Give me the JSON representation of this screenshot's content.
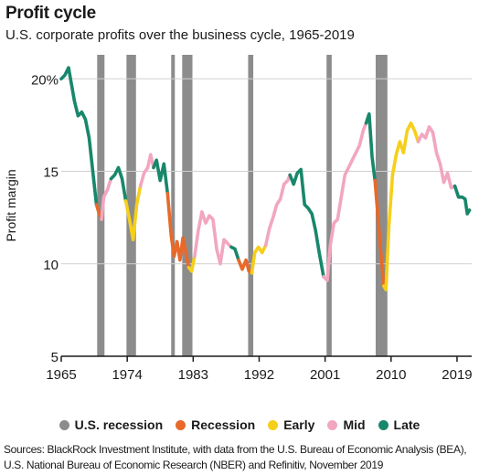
{
  "title": "Profit cycle",
  "subtitle": "U.S. corporate profits over the business cycle, 1965-2019",
  "sources": [
    "Sources: BlackRock Investment Institute, with data from the U.S. Bureau of Economic Analysis (BEA),",
    "U.S. National Bureau of Economic Research (NBER) and Refinitiv, November 2019"
  ],
  "legend": [
    {
      "label": "U.S. recession",
      "color": "#8c8c8c"
    },
    {
      "label": "Recession",
      "color": "#e8692a"
    },
    {
      "label": "Early",
      "color": "#f5cf1b"
    },
    {
      "label": "Mid",
      "color": "#f2a6bf"
    },
    {
      "label": "Late",
      "color": "#18876b"
    }
  ],
  "chart_data": {
    "type": "line",
    "title": "Profit cycle",
    "ylabel": "Profit margin",
    "xlabel": "",
    "xlim": [
      1965,
      2021
    ],
    "ylim": [
      5,
      21
    ],
    "x_ticks": [
      1965,
      1974,
      1983,
      1992,
      2001,
      2010,
      2019
    ],
    "x_tick_labels": [
      "1965",
      "1974",
      "1983",
      "1992",
      "2001",
      "2010",
      "2019"
    ],
    "y_ticks": [
      5,
      10,
      15,
      20
    ],
    "y_tick_labels": [
      "5",
      "10",
      "15",
      "20%"
    ],
    "grid": "horizontal",
    "legend_position": "bottom",
    "recessions": [
      [
        1969.9,
        1970.9
      ],
      [
        1973.9,
        1975.2
      ],
      [
        1980.0,
        1980.5
      ],
      [
        1981.5,
        1982.9
      ],
      [
        1990.5,
        1991.2
      ],
      [
        2001.2,
        2001.9
      ],
      [
        2007.9,
        2009.5
      ]
    ],
    "phase_colors": {
      "Recession": "#e8692a",
      "Early": "#f5cf1b",
      "Mid": "#f2a6bf",
      "Late": "#18876b"
    },
    "segments": [
      {
        "phase": "Late",
        "points": [
          [
            1965.0,
            20.0
          ],
          [
            1965.5,
            20.2
          ],
          [
            1966.0,
            20.6
          ],
          [
            1966.4,
            19.7
          ],
          [
            1966.8,
            18.8
          ],
          [
            1967.3,
            18.0
          ],
          [
            1967.8,
            18.2
          ],
          [
            1968.3,
            17.8
          ],
          [
            1968.8,
            16.8
          ],
          [
            1969.3,
            15.0
          ],
          [
            1969.8,
            13.2
          ]
        ]
      },
      {
        "phase": "Recession",
        "points": [
          [
            1969.8,
            13.2
          ],
          [
            1970.1,
            12.8
          ],
          [
            1970.5,
            12.4
          ]
        ]
      },
      {
        "phase": "Mid",
        "points": [
          [
            1970.5,
            12.4
          ],
          [
            1970.8,
            13.6
          ],
          [
            1971.3,
            14.0
          ],
          [
            1971.8,
            14.6
          ]
        ]
      },
      {
        "phase": "Late",
        "points": [
          [
            1971.8,
            14.6
          ],
          [
            1972.3,
            14.8
          ],
          [
            1972.8,
            15.2
          ],
          [
            1973.3,
            14.6
          ],
          [
            1973.8,
            13.4
          ]
        ]
      },
      {
        "phase": "Early",
        "points": [
          [
            1973.8,
            13.4
          ],
          [
            1974.3,
            12.4
          ],
          [
            1974.8,
            11.3
          ],
          [
            1975.3,
            13.2
          ],
          [
            1975.8,
            14.2
          ]
        ]
      },
      {
        "phase": "Mid",
        "points": [
          [
            1975.8,
            14.2
          ],
          [
            1976.3,
            14.9
          ],
          [
            1976.8,
            15.2
          ],
          [
            1977.2,
            15.9
          ],
          [
            1977.6,
            15.2
          ]
        ]
      },
      {
        "phase": "Late",
        "points": [
          [
            1977.6,
            15.2
          ],
          [
            1978.0,
            15.6
          ],
          [
            1978.5,
            14.5
          ],
          [
            1979.0,
            15.4
          ],
          [
            1979.5,
            13.8
          ]
        ]
      },
      {
        "phase": "Recession",
        "points": [
          [
            1979.5,
            13.8
          ],
          [
            1980.0,
            11.5
          ],
          [
            1980.4,
            10.4
          ],
          [
            1980.8,
            11.2
          ],
          [
            1981.2,
            10.2
          ],
          [
            1981.6,
            11.4
          ],
          [
            1982.0,
            10.6
          ],
          [
            1982.4,
            9.8
          ]
        ]
      },
      {
        "phase": "Early",
        "points": [
          [
            1982.4,
            9.8
          ],
          [
            1982.8,
            9.6
          ],
          [
            1983.2,
            10.4
          ]
        ]
      },
      {
        "phase": "Mid",
        "points": [
          [
            1983.2,
            10.4
          ],
          [
            1983.7,
            11.8
          ],
          [
            1984.2,
            12.8
          ],
          [
            1984.7,
            12.2
          ],
          [
            1985.2,
            12.6
          ],
          [
            1985.7,
            12.4
          ],
          [
            1986.2,
            10.8
          ],
          [
            1986.7,
            10.0
          ],
          [
            1987.2,
            11.3
          ],
          [
            1987.7,
            11.1
          ],
          [
            1988.2,
            10.9
          ]
        ]
      },
      {
        "phase": "Late",
        "points": [
          [
            1988.2,
            10.9
          ],
          [
            1988.7,
            10.8
          ],
          [
            1989.2,
            10.2
          ]
        ]
      },
      {
        "phase": "Recession",
        "points": [
          [
            1989.2,
            10.2
          ],
          [
            1989.7,
            9.7
          ],
          [
            1990.2,
            10.2
          ],
          [
            1990.6,
            9.6
          ],
          [
            1991.0,
            9.5
          ]
        ]
      },
      {
        "phase": "Early",
        "points": [
          [
            1991.0,
            9.5
          ],
          [
            1991.4,
            10.6
          ],
          [
            1991.9,
            10.9
          ],
          [
            1992.4,
            10.6
          ],
          [
            1992.9,
            11.0
          ]
        ]
      },
      {
        "phase": "Mid",
        "points": [
          [
            1992.9,
            11.0
          ],
          [
            1993.4,
            11.9
          ],
          [
            1993.9,
            12.5
          ],
          [
            1994.4,
            13.2
          ],
          [
            1994.9,
            13.5
          ],
          [
            1995.4,
            14.3
          ],
          [
            1995.9,
            14.5
          ],
          [
            1996.2,
            14.8
          ]
        ]
      },
      {
        "phase": "Late",
        "points": [
          [
            1996.2,
            14.8
          ],
          [
            1996.7,
            14.3
          ],
          [
            1997.2,
            14.9
          ],
          [
            1997.7,
            15.1
          ],
          [
            1998.2,
            13.2
          ],
          [
            1998.7,
            13.0
          ],
          [
            1999.2,
            12.7
          ],
          [
            1999.7,
            11.8
          ],
          [
            2000.2,
            10.6
          ],
          [
            2000.8,
            9.3
          ]
        ]
      },
      {
        "phase": "Mid",
        "points": [
          [
            2000.8,
            9.3
          ],
          [
            2001.3,
            9.1
          ],
          [
            2001.7,
            11.0
          ],
          [
            2002.2,
            12.2
          ],
          [
            2002.7,
            12.4
          ],
          [
            2003.2,
            13.6
          ],
          [
            2003.7,
            14.8
          ],
          [
            2004.2,
            15.2
          ],
          [
            2004.7,
            15.6
          ],
          [
            2005.2,
            16.0
          ],
          [
            2005.7,
            16.4
          ],
          [
            2006.2,
            17.2
          ],
          [
            2006.6,
            17.6
          ]
        ]
      },
      {
        "phase": "Late",
        "points": [
          [
            2006.6,
            17.6
          ],
          [
            2007.0,
            18.1
          ],
          [
            2007.4,
            15.8
          ],
          [
            2007.8,
            14.5
          ]
        ]
      },
      {
        "phase": "Recession",
        "points": [
          [
            2007.8,
            14.5
          ],
          [
            2008.2,
            12.6
          ],
          [
            2008.6,
            10.6
          ],
          [
            2009.0,
            8.8
          ]
        ]
      },
      {
        "phase": "Early",
        "points": [
          [
            2009.0,
            8.8
          ],
          [
            2009.3,
            8.6
          ],
          [
            2009.7,
            12.0
          ],
          [
            2010.2,
            14.8
          ],
          [
            2010.7,
            15.9
          ],
          [
            2011.2,
            16.6
          ],
          [
            2011.7,
            16.0
          ],
          [
            2012.2,
            17.2
          ],
          [
            2012.7,
            17.6
          ],
          [
            2013.2,
            17.2
          ],
          [
            2013.7,
            16.6
          ]
        ]
      },
      {
        "phase": "Mid",
        "points": [
          [
            2013.7,
            16.6
          ],
          [
            2014.2,
            17.0
          ],
          [
            2014.7,
            16.8
          ],
          [
            2015.2,
            17.4
          ],
          [
            2015.7,
            17.1
          ],
          [
            2016.2,
            16.0
          ],
          [
            2016.7,
            15.4
          ],
          [
            2017.2,
            14.4
          ],
          [
            2017.7,
            14.9
          ],
          [
            2018.2,
            14.1
          ],
          [
            2018.7,
            14.2
          ]
        ]
      },
      {
        "phase": "Late",
        "points": [
          [
            2018.7,
            14.2
          ],
          [
            2019.2,
            13.6
          ],
          [
            2019.7,
            13.6
          ],
          [
            2020.1,
            13.5
          ],
          [
            2020.4,
            12.7
          ],
          [
            2020.7,
            12.9
          ]
        ]
      }
    ]
  }
}
